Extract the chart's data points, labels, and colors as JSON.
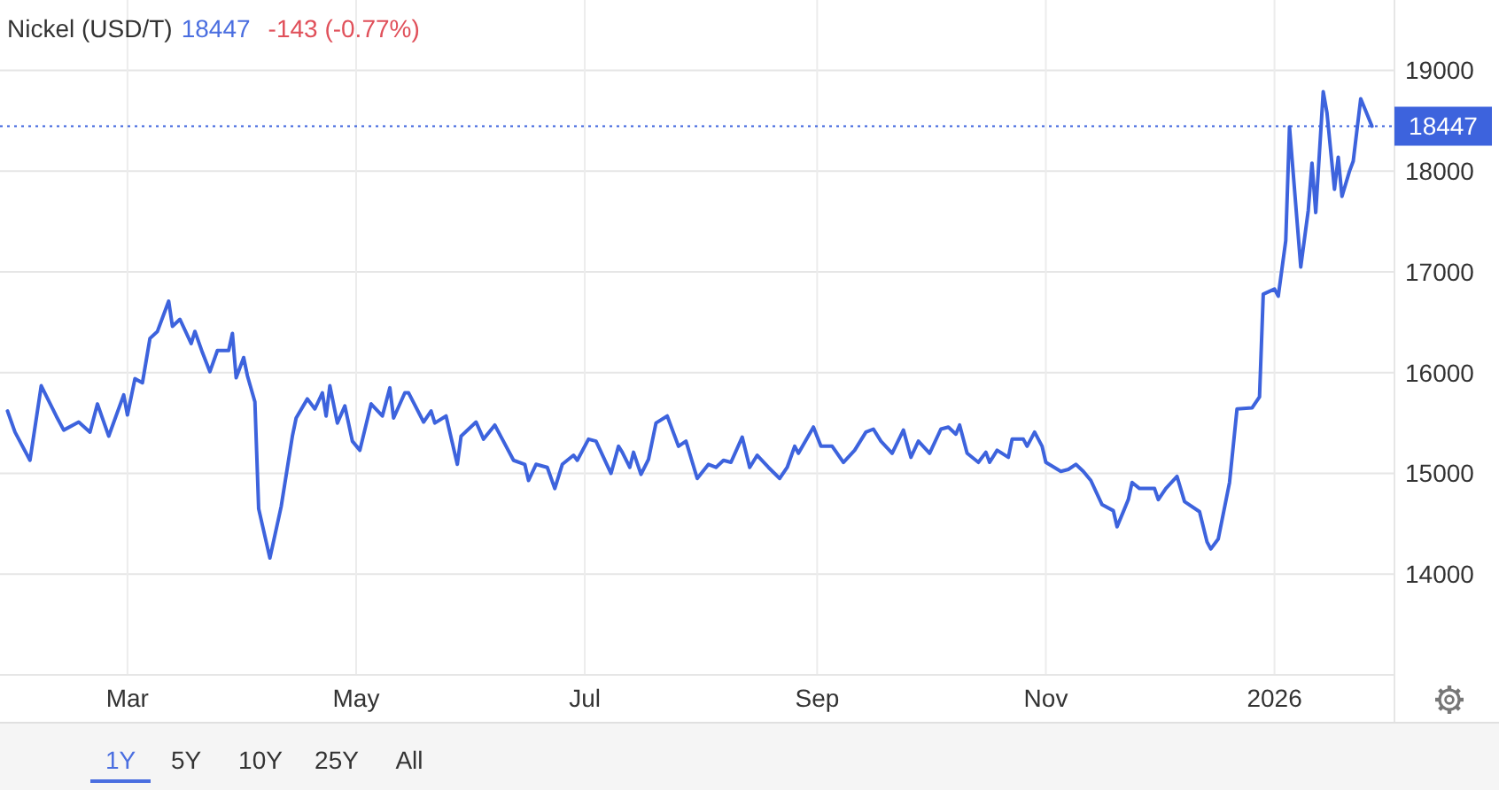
{
  "chart_data": {
    "type": "line",
    "title": "Nickel (USD/T)",
    "annotations": [
      "18447",
      "-143 (-0.77%)",
      "1Y",
      "5Y",
      "10Y",
      "25Y",
      "All"
    ],
    "x": [
      "2025-01-28",
      "2025-01-30",
      "2025-02-03",
      "2025-02-06",
      "2025-02-10",
      "2025-02-12",
      "2025-02-16",
      "2025-02-19",
      "2025-02-21",
      "2025-02-24",
      "2025-02-28",
      "2025-03-01",
      "2025-03-03",
      "2025-03-05",
      "2025-03-07",
      "2025-03-09",
      "2025-03-12",
      "2025-03-13",
      "2025-03-15",
      "2025-03-18",
      "2025-03-19",
      "2025-03-21",
      "2025-03-23",
      "2025-03-25",
      "2025-03-28",
      "2025-03-29",
      "2025-03-30",
      "2025-04-01",
      "2025-04-02",
      "2025-04-04",
      "2025-04-05",
      "2025-04-08",
      "2025-04-11",
      "2025-04-14",
      "2025-04-15",
      "2025-04-18",
      "2025-04-20",
      "2025-04-22",
      "2025-04-23",
      "2025-04-24",
      "2025-04-26",
      "2025-04-28",
      "2025-04-30",
      "2025-05-02",
      "2025-05-05",
      "2025-05-08",
      "2025-05-10",
      "2025-05-11",
      "2025-05-14",
      "2025-05-15",
      "2025-05-19",
      "2025-05-21",
      "2025-05-22",
      "2025-05-25",
      "2025-05-28",
      "2025-05-29",
      "2025-06-02",
      "2025-06-04",
      "2025-06-07",
      "2025-06-09",
      "2025-06-12",
      "2025-06-15",
      "2025-06-16",
      "2025-06-18",
      "2025-06-21",
      "2025-06-23",
      "2025-06-25",
      "2025-06-28",
      "2025-06-29",
      "2025-07-02",
      "2025-07-04",
      "2025-07-08",
      "2025-07-10",
      "2025-07-11",
      "2025-07-13",
      "2025-07-14",
      "2025-07-16",
      "2025-07-18",
      "2025-07-20",
      "2025-07-23",
      "2025-07-26",
      "2025-07-28",
      "2025-07-31",
      "2025-08-03",
      "2025-08-05",
      "2025-08-07",
      "2025-08-09",
      "2025-08-12",
      "2025-08-14",
      "2025-08-16",
      "2025-08-19",
      "2025-08-22",
      "2025-08-24",
      "2025-08-26",
      "2025-08-27",
      "2025-08-31",
      "2025-09-02",
      "2025-09-05",
      "2025-09-08",
      "2025-09-11",
      "2025-09-14",
      "2025-09-16",
      "2025-09-18",
      "2025-09-21",
      "2025-09-24",
      "2025-09-26",
      "2025-09-28",
      "2025-10-01",
      "2025-10-04",
      "2025-10-06",
      "2025-10-08",
      "2025-10-09",
      "2025-10-11",
      "2025-10-14",
      "2025-10-16",
      "2025-10-17",
      "2025-10-19",
      "2025-10-22",
      "2025-10-23",
      "2025-10-26",
      "2025-10-27",
      "2025-10-29",
      "2025-10-31",
      "2025-11-01",
      "2025-11-05",
      "2025-11-07",
      "2025-11-09",
      "2025-11-11",
      "2025-11-13",
      "2025-11-16",
      "2025-11-19",
      "2025-11-20",
      "2025-11-23",
      "2025-11-24",
      "2025-11-26",
      "2025-11-30",
      "2025-12-01",
      "2025-12-03",
      "2025-12-06",
      "2025-12-08",
      "2025-12-12",
      "2025-12-14",
      "2025-12-15",
      "2025-12-17",
      "2025-12-20",
      "2025-12-22",
      "2025-12-26",
      "2025-12-28",
      "2025-12-29",
      "2026-01-01",
      "2026-01-02",
      "2026-01-04",
      "2026-01-05",
      "2026-01-08",
      "2026-01-10",
      "2026-01-11",
      "2026-01-12",
      "2026-01-14",
      "2026-01-15",
      "2026-01-17",
      "2026-01-18",
      "2026-01-19",
      "2026-01-21",
      "2026-01-22",
      "2026-01-24",
      "2026-01-25",
      "2026-01-27"
    ],
    "series": [
      {
        "color": "#3d63dd",
        "values": [
          15620,
          15410,
          15130,
          15870,
          15570,
          15430,
          15510,
          15410,
          15690,
          15370,
          15780,
          15580,
          15940,
          15900,
          16340,
          16410,
          16710,
          16460,
          16530,
          16290,
          16410,
          16200,
          16010,
          16220,
          16220,
          16390,
          15950,
          16150,
          15970,
          15710,
          14650,
          14160,
          14670,
          15370,
          15550,
          15740,
          15640,
          15800,
          15570,
          15870,
          15500,
          15670,
          15320,
          15230,
          15690,
          15570,
          15850,
          15550,
          15800,
          15800,
          15510,
          15620,
          15500,
          15570,
          15090,
          15370,
          15510,
          15340,
          15480,
          15340,
          15130,
          15090,
          14930,
          15090,
          15060,
          14850,
          15090,
          15180,
          15130,
          15340,
          15320,
          15000,
          15270,
          15210,
          15060,
          15210,
          14990,
          15140,
          15500,
          15570,
          15270,
          15320,
          14950,
          15090,
          15060,
          15130,
          15110,
          15360,
          15060,
          15180,
          15060,
          14950,
          15060,
          15270,
          15200,
          15460,
          15270,
          15270,
          15110,
          15230,
          15410,
          15440,
          15320,
          15200,
          15430,
          15160,
          15320,
          15200,
          15440,
          15460,
          15390,
          15480,
          15200,
          15110,
          15210,
          15110,
          15230,
          15160,
          15340,
          15340,
          15270,
          15410,
          15270,
          15110,
          15020,
          15040,
          15090,
          15020,
          14930,
          14690,
          14630,
          14470,
          14740,
          14910,
          14850,
          14850,
          14740,
          14850,
          14970,
          14720,
          14620,
          14320,
          14250,
          14350,
          14910,
          15640,
          15650,
          15760,
          16780,
          16830,
          16760,
          17310,
          18440,
          17050,
          17610,
          18080,
          17590,
          18790,
          18580,
          17820,
          18140,
          17750,
          18000,
          18100,
          18720,
          18630,
          18447
        ]
      }
    ],
    "xlim": [
      "2025-01-26",
      "2026-02-02"
    ],
    "xticks": [
      {
        "value": "2025-03-01",
        "label": "Mar"
      },
      {
        "value": "2025-05-01",
        "label": "May"
      },
      {
        "value": "2025-07-01",
        "label": "Jul"
      },
      {
        "value": "2025-09-01",
        "label": "Sep"
      },
      {
        "value": "2025-11-01",
        "label": "Nov"
      },
      {
        "value": "2026-01-01",
        "label": "2026"
      }
    ],
    "ylim": [
      13000,
      19700
    ],
    "yticks": [
      14000,
      15000,
      16000,
      17000,
      18000,
      19000
    ],
    "grid": true,
    "marker": "none",
    "line_style": "solid",
    "ref_lines": [
      {
        "axis": "y",
        "value": 18447,
        "label": "18447",
        "color": "#3d63dd",
        "line_style": "dotted"
      }
    ]
  }
}
